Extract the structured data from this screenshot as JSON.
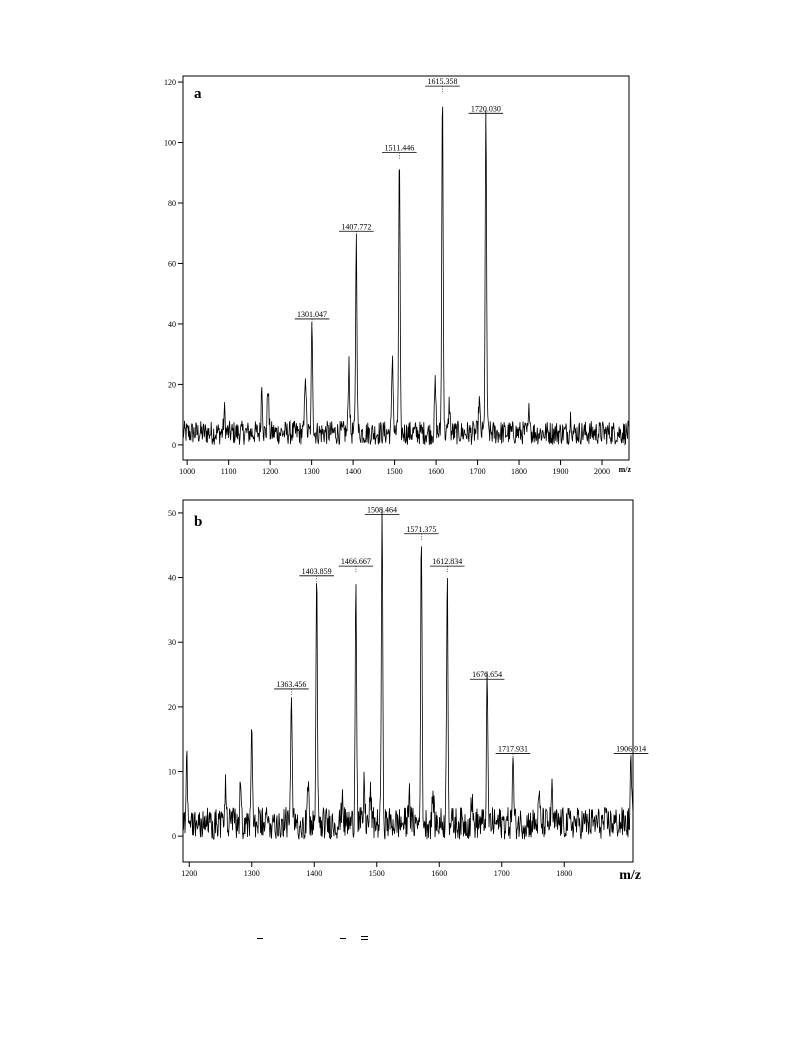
{
  "chart_data": [
    {
      "type": "line",
      "panel_label": "a",
      "xlabel": "m/z",
      "xlim": [
        990,
        2065
      ],
      "ylim": [
        -5,
        122
      ],
      "xticks": [
        1000,
        1100,
        1200,
        1300,
        1400,
        1500,
        1600,
        1700,
        1800,
        1900,
        2000
      ],
      "yticks": [
        0,
        20,
        40,
        60,
        80,
        100,
        120
      ],
      "grid": false,
      "baseline": 4,
      "noise": 4,
      "peaks": [
        {
          "x": 1090,
          "y": 11
        },
        {
          "x": 1180,
          "y": 20
        },
        {
          "x": 1195,
          "y": 20
        },
        {
          "x": 1285,
          "y": 25
        },
        {
          "x": 1301.047,
          "y": 40,
          "label": "1301.047"
        },
        {
          "x": 1390,
          "y": 28
        },
        {
          "x": 1407.772,
          "y": 69,
          "label": "1407.772"
        },
        {
          "x": 1495,
          "y": 30
        },
        {
          "x": 1511.446,
          "y": 95,
          "label": "1511.446"
        },
        {
          "x": 1598,
          "y": 20
        },
        {
          "x": 1615.358,
          "y": 117,
          "label": "1615.358"
        },
        {
          "x": 1632,
          "y": 14
        },
        {
          "x": 1704,
          "y": 15
        },
        {
          "x": 1720.03,
          "y": 108,
          "label": "1720.030"
        },
        {
          "x": 1825,
          "y": 13
        },
        {
          "x": 1925,
          "y": 10
        }
      ]
    },
    {
      "type": "line",
      "panel_label": "b",
      "xlabel": "m/z",
      "xlim": [
        1190,
        1910
      ],
      "ylim": [
        -4,
        52
      ],
      "xticks": [
        1200,
        1300,
        1400,
        1500,
        1600,
        1700,
        1800
      ],
      "yticks": [
        0,
        10,
        20,
        30,
        40,
        50
      ],
      "grid": false,
      "baseline": 2,
      "noise": 2.5,
      "peaks": [
        {
          "x": 1196,
          "y": 13
        },
        {
          "x": 1258,
          "y": 8
        },
        {
          "x": 1282,
          "y": 9
        },
        {
          "x": 1300,
          "y": 15
        },
        {
          "x": 1363.456,
          "y": 22,
          "label": "1363.456"
        },
        {
          "x": 1390,
          "y": 8
        },
        {
          "x": 1403.859,
          "y": 39.5,
          "label": "1403.859"
        },
        {
          "x": 1445,
          "y": 7
        },
        {
          "x": 1466.667,
          "y": 41,
          "label": "1466.667"
        },
        {
          "x": 1480,
          "y": 8
        },
        {
          "x": 1490,
          "y": 7
        },
        {
          "x": 1508.464,
          "y": 49,
          "label": "1508.464"
        },
        {
          "x": 1552,
          "y": 8
        },
        {
          "x": 1571.375,
          "y": 46,
          "label": "1571.375"
        },
        {
          "x": 1590,
          "y": 7
        },
        {
          "x": 1612.834,
          "y": 41,
          "label": "1612.834"
        },
        {
          "x": 1652,
          "y": 6
        },
        {
          "x": 1676.654,
          "y": 23.5,
          "label": "1676.654"
        },
        {
          "x": 1717.931,
          "y": 12,
          "label": "1717.931"
        },
        {
          "x": 1760,
          "y": 6
        },
        {
          "x": 1780,
          "y": 7
        },
        {
          "x": 1906.914,
          "y": 12,
          "label": "1906.914"
        }
      ]
    }
  ]
}
